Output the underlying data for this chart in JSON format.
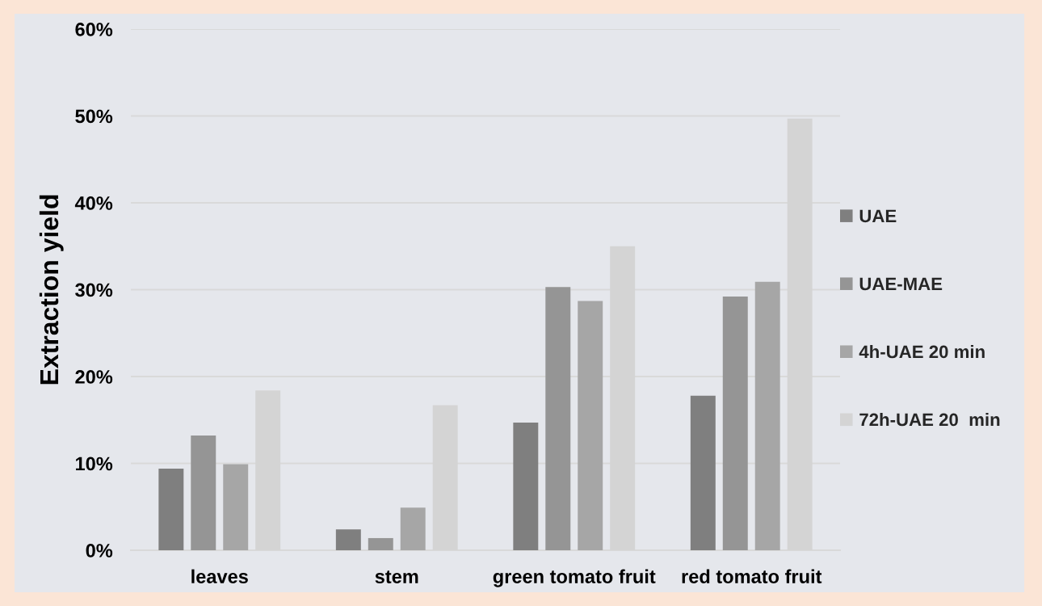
{
  "chart_data": {
    "type": "bar",
    "categories": [
      "leaves",
      "stem",
      "green tomato fruit",
      "red tomato fruit"
    ],
    "ylabel": "Extraction yield",
    "ylim": [
      0,
      60
    ],
    "yticks": [
      {
        "value": 0,
        "label": "0%"
      },
      {
        "value": 10,
        "label": "10%"
      },
      {
        "value": 20,
        "label": "20%"
      },
      {
        "value": 30,
        "label": "30%"
      },
      {
        "value": 40,
        "label": "40%"
      },
      {
        "value": 50,
        "label": "50%"
      },
      {
        "value": 60,
        "label": "60%"
      }
    ],
    "grid": "y",
    "legend": "right",
    "series": [
      {
        "name": "UAE",
        "color": "#7f7f7f",
        "values": [
          9.4,
          2.4,
          14.7,
          17.8
        ]
      },
      {
        "name": "UAE-MAE",
        "color": "#959595",
        "values": [
          13.2,
          1.4,
          30.3,
          29.2
        ]
      },
      {
        "name": "4h-UAE 20 min",
        "color": "#a6a6a6",
        "values": [
          9.9,
          4.9,
          28.7,
          30.9
        ]
      },
      {
        "name": "72h-UAE 20  min",
        "color": "#d4d4d4",
        "values": [
          18.4,
          16.7,
          35.0,
          49.7
        ]
      }
    ]
  }
}
